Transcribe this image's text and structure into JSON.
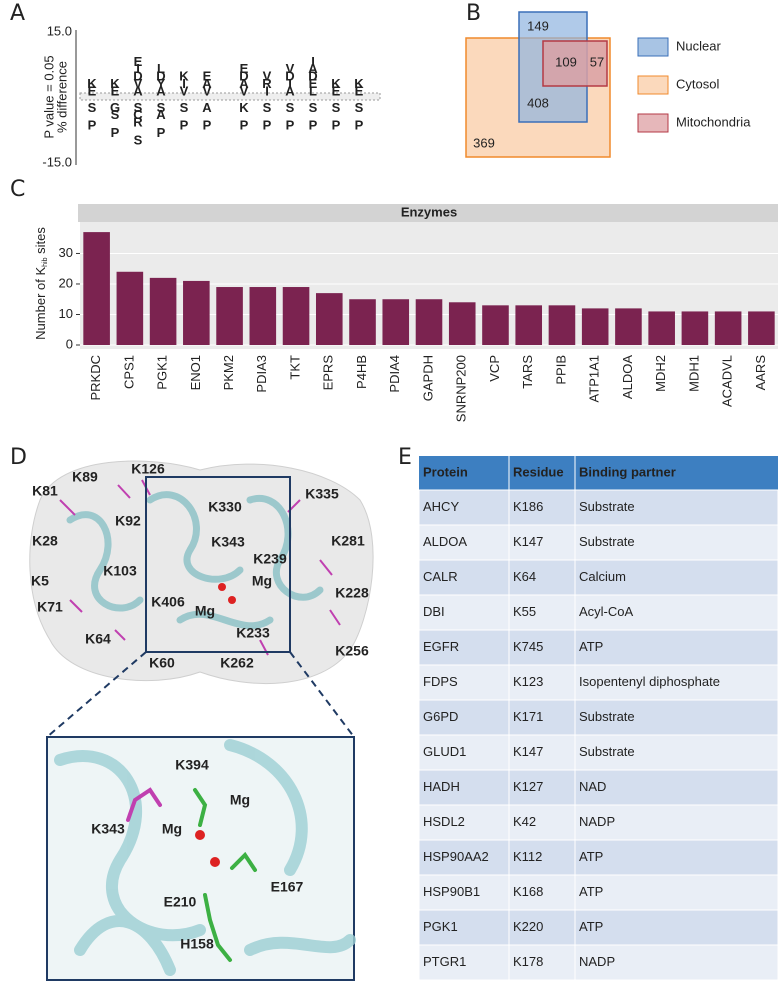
{
  "panel_labels": [
    "A",
    "B",
    "C",
    "D",
    "E"
  ],
  "logo": {
    "y_labels": [
      "P value = 0.05",
      "% difference"
    ],
    "yticks": [
      "15.0",
      "-15.0"
    ],
    "columns": [
      {
        "up": [
          "K",
          "E"
        ],
        "down": [
          "S",
          "P"
        ]
      },
      {
        "up": [
          "K",
          "E"
        ],
        "down": [
          "G",
          "S",
          "P"
        ]
      },
      {
        "up": [
          "E",
          "I",
          "D",
          "V",
          "A"
        ],
        "down": [
          "S",
          "C",
          "R",
          "S"
        ]
      },
      {
        "up": [
          "L",
          "D",
          "Y",
          "A"
        ],
        "down": [
          "S",
          "A",
          "P"
        ]
      },
      {
        "up": [
          "K",
          "I",
          "V"
        ],
        "down": [
          "S",
          "P"
        ]
      },
      {
        "up": [
          "E",
          "A",
          "V"
        ],
        "down": [
          "A",
          "P"
        ]
      },
      {
        "up": [
          "E",
          "D",
          "A",
          "V"
        ],
        "down": [
          "K",
          "P"
        ]
      },
      {
        "up": [
          "V",
          "R",
          "I"
        ],
        "down": [
          "S",
          "P"
        ]
      },
      {
        "up": [
          "V",
          "D",
          "I",
          "A"
        ],
        "down": [
          "S",
          "P"
        ]
      },
      {
        "up": [
          "I",
          "A",
          "D",
          "E",
          "L"
        ],
        "down": [
          "S",
          "P"
        ]
      },
      {
        "up": [
          "K",
          "E"
        ],
        "down": [
          "S",
          "P"
        ]
      },
      {
        "up": [
          "K",
          "E"
        ],
        "down": [
          "S",
          "P"
        ]
      }
    ]
  },
  "venn": {
    "counts": [
      "149",
      "109",
      "57",
      "408",
      "369"
    ],
    "legend": [
      "Nuclear",
      "Cytosol",
      "Mitochondria"
    ]
  },
  "chart_data": {
    "type": "bar",
    "title": "Enzymes",
    "y_label": [
      "Number of K",
      "hib",
      " sites"
    ],
    "categories": [
      "PRKDC",
      "CPS1",
      "PGK1",
      "ENO1",
      "PKM2",
      "PDIA3",
      "TKT",
      "EPRS",
      "P4HB",
      "PDIA4",
      "GAPDH",
      "SNRNP200",
      "VCP",
      "TARS",
      "PPIB",
      "ATP1A1",
      "ALDOA",
      "MDH2",
      "MDH1",
      "ACADVL",
      "AARS"
    ],
    "values": [
      37,
      24,
      22,
      21,
      19,
      19,
      19,
      17,
      15,
      15,
      15,
      14,
      13,
      13,
      13,
      12,
      12,
      11,
      11,
      11,
      11
    ],
    "color": "#7b2350",
    "ylim": [
      0,
      39
    ],
    "yticks": [
      0,
      10,
      20,
      30
    ],
    "grid": true
  },
  "structure": {
    "labels": [
      "K81",
      "K89",
      "K126",
      "K92",
      "K330",
      "K335",
      "K28",
      "K343",
      "K239",
      "K281",
      "K103",
      "Mg",
      "K5",
      "K406",
      "K228",
      "Mg",
      "K71",
      "K233",
      "K64",
      "K256",
      "K60",
      "K262"
    ],
    "inset_labels": [
      "K394",
      "Mg",
      "K343",
      "Mg",
      "E167",
      "E210",
      "H158"
    ]
  },
  "table": {
    "header": [
      "Protein",
      "Residue",
      "Binding  partner"
    ],
    "rows": [
      [
        "AHCY",
        "K186",
        "Substrate"
      ],
      [
        "ALDOA",
        "K147",
        "Substrate"
      ],
      [
        "CALR",
        "K64",
        "Calcium"
      ],
      [
        "DBI",
        "K55",
        "Acyl-CoA"
      ],
      [
        "EGFR",
        "K745",
        "ATP"
      ],
      [
        "FDPS",
        "K123",
        "Isopentenyl diphosphate"
      ],
      [
        "G6PD",
        "K171",
        "Substrate"
      ],
      [
        "GLUD1",
        "K147",
        "Substrate"
      ],
      [
        "HADH",
        "K127",
        "NAD"
      ],
      [
        "HSDL2",
        "K42",
        "NADP"
      ],
      [
        "HSP90AA2",
        "K112",
        "ATP"
      ],
      [
        "HSP90B1",
        "K168",
        "ATP"
      ],
      [
        "PGK1",
        "K220",
        "ATP"
      ],
      [
        "PTGR1",
        "K178",
        "NADP"
      ]
    ]
  }
}
